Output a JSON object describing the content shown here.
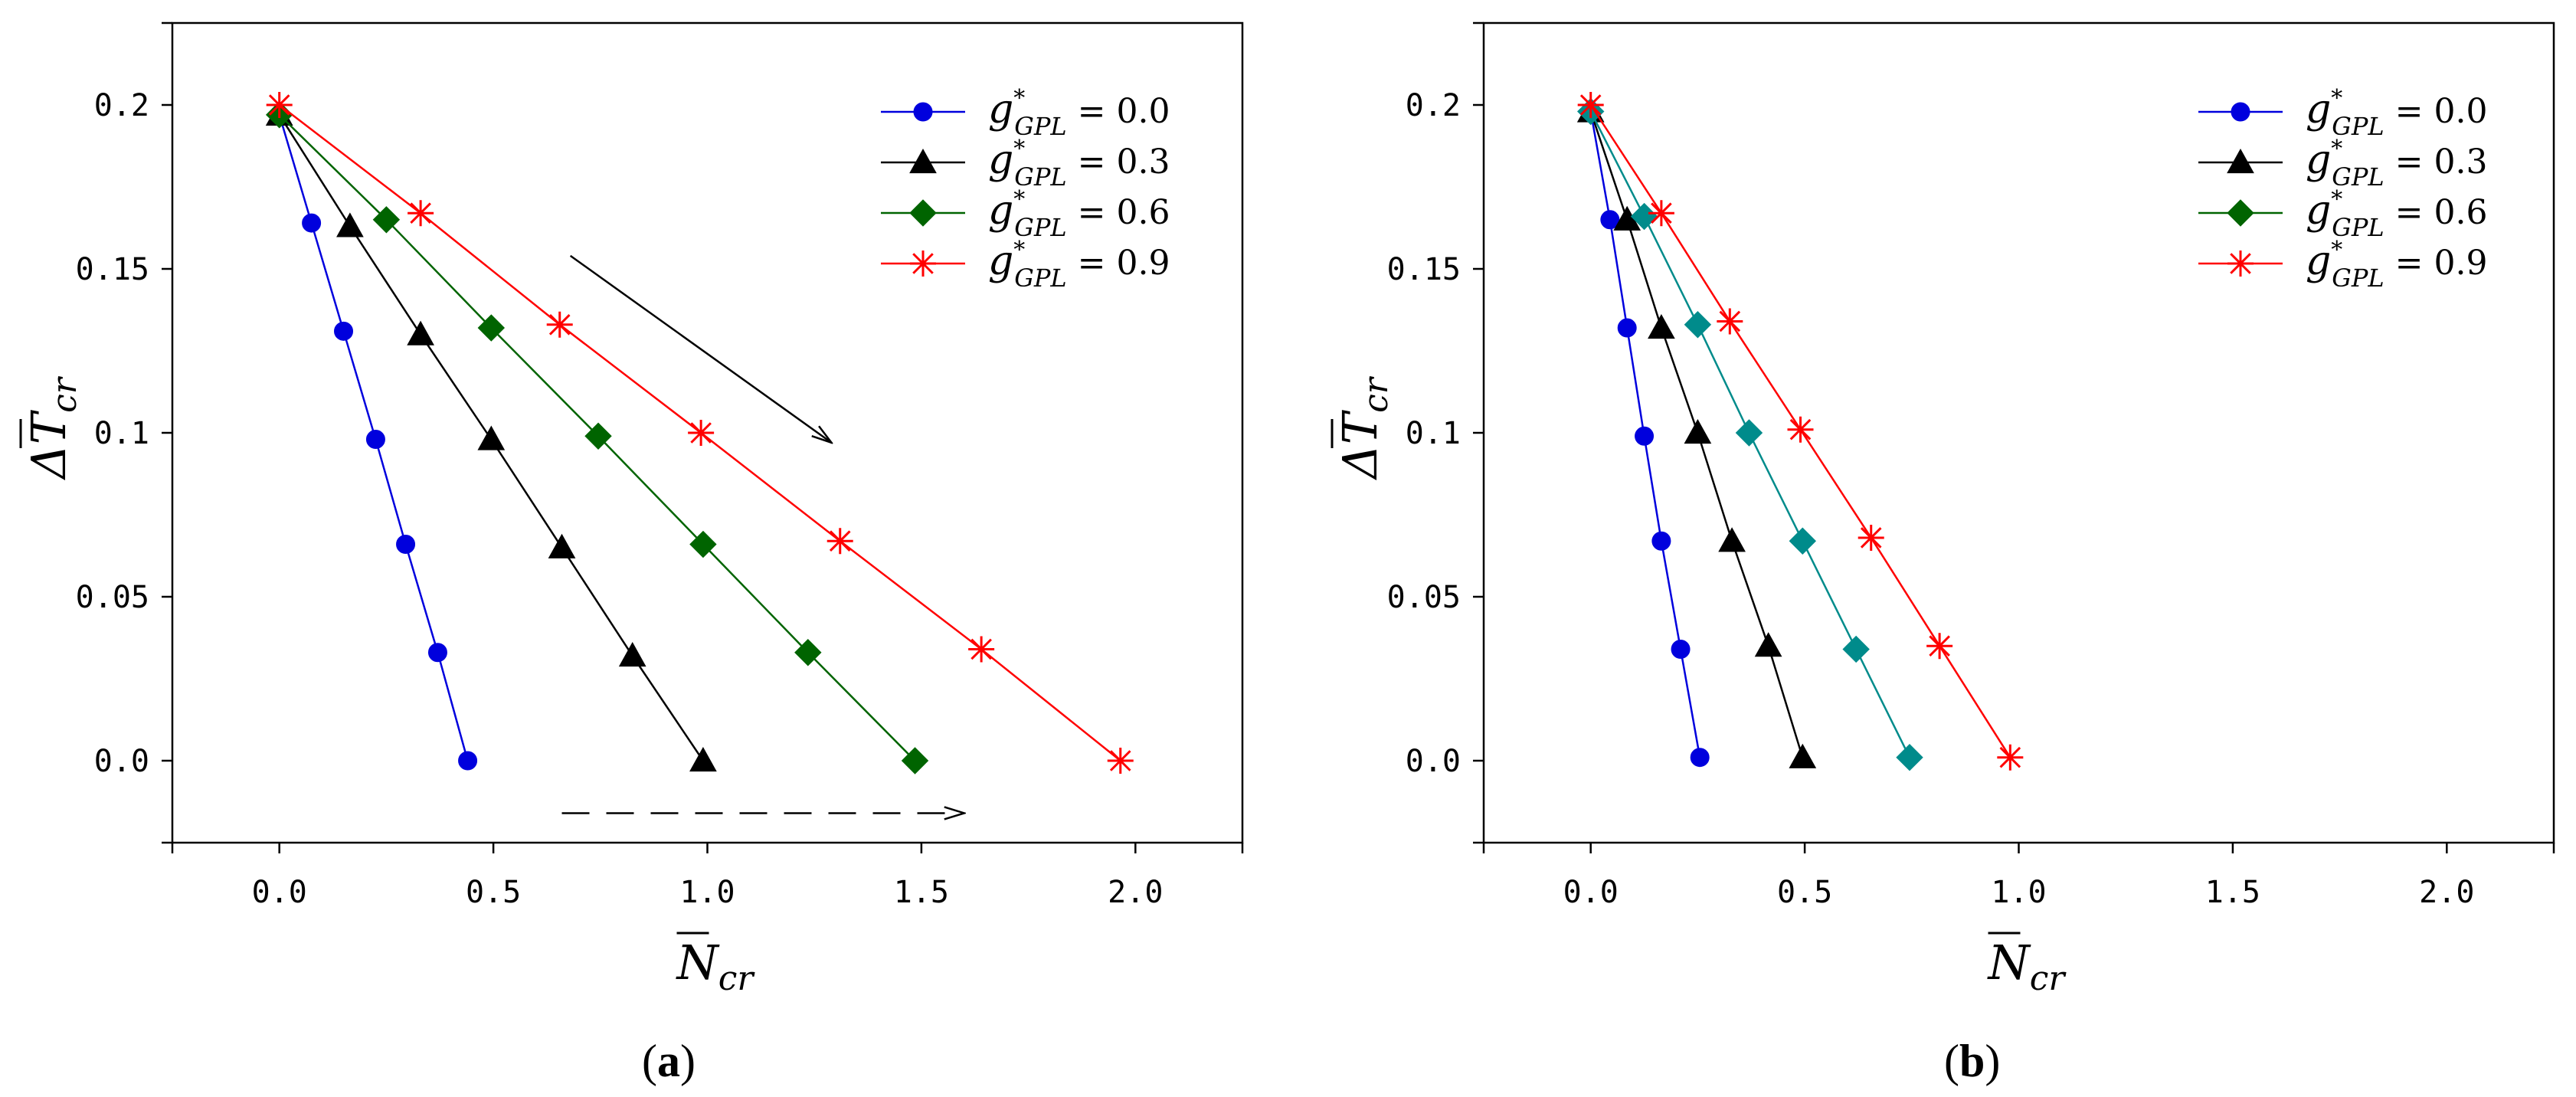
{
  "chart_data": [
    {
      "panel_label": "(a)",
      "type": "line",
      "xlabel": "N̄cr",
      "ylabel": "ΔT̄cr",
      "xlim": [
        -0.25,
        2.25
      ],
      "ylim": [
        -0.025,
        0.225
      ],
      "x_ticks": [
        "0.0",
        "0.5",
        "1.0",
        "1.5",
        "2.0"
      ],
      "x_tick_values": [
        0,
        0.5,
        1.0,
        1.5,
        2.0
      ],
      "y_ticks": [
        "0.0",
        "0.05",
        "0.1",
        "0.15",
        "0.2"
      ],
      "y_tick_values": [
        0,
        0.05,
        0.1,
        0.15,
        0.2
      ],
      "grid": false,
      "legend_placement": "top-right",
      "series": [
        {
          "name": "g*GPL = 0.0",
          "label": {
            "var": "g",
            "sup": "*",
            "sub": "GPL",
            "value": " = 0.0"
          },
          "color": "#0000dd",
          "marker": "circle",
          "points": [
            [
              0.0,
              0.197
            ],
            [
              0.075,
              0.164
            ],
            [
              0.15,
              0.131
            ],
            [
              0.225,
              0.098
            ],
            [
              0.295,
              0.066
            ],
            [
              0.37,
              0.033
            ],
            [
              0.44,
              0.0
            ]
          ]
        },
        {
          "name": "g*GPL = 0.3",
          "label": {
            "var": "g",
            "sup": "*",
            "sub": "GPL",
            "value": " = 0.3"
          },
          "color": "#000000",
          "marker": "triangle",
          "points": [
            [
              0.0,
              0.197
            ],
            [
              0.165,
              0.163
            ],
            [
              0.33,
              0.13
            ],
            [
              0.495,
              0.098
            ],
            [
              0.66,
              0.065
            ],
            [
              0.825,
              0.032
            ],
            [
              0.99,
              0.0
            ]
          ]
        },
        {
          "name": "g*GPL = 0.6",
          "label": {
            "var": "g",
            "sup": "*",
            "sub": "GPL",
            "value": " = 0.6"
          },
          "color": "#006400",
          "marker": "diamond",
          "points": [
            [
              0.0,
              0.197
            ],
            [
              0.25,
              0.165
            ],
            [
              0.495,
              0.132
            ],
            [
              0.745,
              0.099
            ],
            [
              0.99,
              0.066
            ],
            [
              1.235,
              0.033
            ],
            [
              1.485,
              0.0
            ]
          ]
        },
        {
          "name": "g*GPL = 0.9",
          "label": {
            "var": "g",
            "sup": "*",
            "sub": "GPL",
            "value": " = 0.9"
          },
          "color": "#ff0000",
          "marker": "asterisk",
          "points": [
            [
              0.0,
              0.2
            ],
            [
              0.33,
              0.167
            ],
            [
              0.655,
              0.133
            ],
            [
              0.985,
              0.1
            ],
            [
              1.31,
              0.067
            ],
            [
              1.64,
              0.034
            ],
            [
              1.965,
              0.0
            ]
          ]
        }
      ],
      "annotations": [
        {
          "type": "arrow",
          "style": "solid",
          "from": [
            0.68,
            0.154
          ],
          "to": [
            1.29,
            0.097
          ]
        },
        {
          "type": "arrow",
          "style": "dashed",
          "from": [
            0.66,
            -0.016
          ],
          "to": [
            1.6,
            -0.016
          ]
        }
      ]
    },
    {
      "panel_label": "(b)",
      "type": "line",
      "xlabel": "N̄cr",
      "ylabel": "ΔT̄cr",
      "xlim": [
        -0.25,
        2.25
      ],
      "ylim": [
        -0.025,
        0.225
      ],
      "x_ticks": [
        "0.0",
        "0.5",
        "1.0",
        "1.5",
        "2.0"
      ],
      "x_tick_values": [
        0,
        0.5,
        1.0,
        1.5,
        2.0
      ],
      "y_ticks": [
        "0.0",
        "0.05",
        "0.1",
        "0.15",
        "0.2"
      ],
      "y_tick_values": [
        0,
        0.05,
        0.1,
        0.15,
        0.2
      ],
      "grid": false,
      "legend_placement": "top-right",
      "series": [
        {
          "name": "g*GPL = 0.0",
          "label": {
            "var": "g",
            "sup": "*",
            "sub": "GPL",
            "value": " = 0.0"
          },
          "color": "#0000dd",
          "marker": "circle",
          "points": [
            [
              0.0,
              0.198
            ],
            [
              0.045,
              0.165
            ],
            [
              0.085,
              0.132
            ],
            [
              0.125,
              0.099
            ],
            [
              0.165,
              0.067
            ],
            [
              0.21,
              0.034
            ],
            [
              0.255,
              0.001
            ]
          ]
        },
        {
          "name": "g*GPL = 0.3",
          "label": {
            "var": "g",
            "sup": "*",
            "sub": "GPL",
            "value": " = 0.3"
          },
          "color": "#000000",
          "marker": "triangle",
          "points": [
            [
              0.0,
              0.198
            ],
            [
              0.085,
              0.165
            ],
            [
              0.165,
              0.132
            ],
            [
              0.25,
              0.1
            ],
            [
              0.33,
              0.067
            ],
            [
              0.415,
              0.035
            ],
            [
              0.495,
              0.001
            ]
          ]
        },
        {
          "name": "g*GPL = 0.6",
          "legend_color": "#006400",
          "label": {
            "var": "g",
            "sup": "*",
            "sub": "GPL",
            "value": " = 0.6"
          },
          "color": "#008b8b",
          "marker": "diamond",
          "points": [
            [
              0.0,
              0.198
            ],
            [
              0.125,
              0.166
            ],
            [
              0.25,
              0.133
            ],
            [
              0.37,
              0.1
            ],
            [
              0.495,
              0.067
            ],
            [
              0.62,
              0.034
            ],
            [
              0.745,
              0.001
            ]
          ]
        },
        {
          "name": "g*GPL = 0.9",
          "label": {
            "var": "g",
            "sup": "*",
            "sub": "GPL",
            "value": " = 0.9"
          },
          "color": "#ff0000",
          "marker": "asterisk",
          "points": [
            [
              0.0,
              0.2
            ],
            [
              0.165,
              0.167
            ],
            [
              0.325,
              0.134
            ],
            [
              0.49,
              0.101
            ],
            [
              0.655,
              0.068
            ],
            [
              0.815,
              0.035
            ],
            [
              0.98,
              0.001
            ]
          ]
        }
      ],
      "annotations": []
    }
  ]
}
